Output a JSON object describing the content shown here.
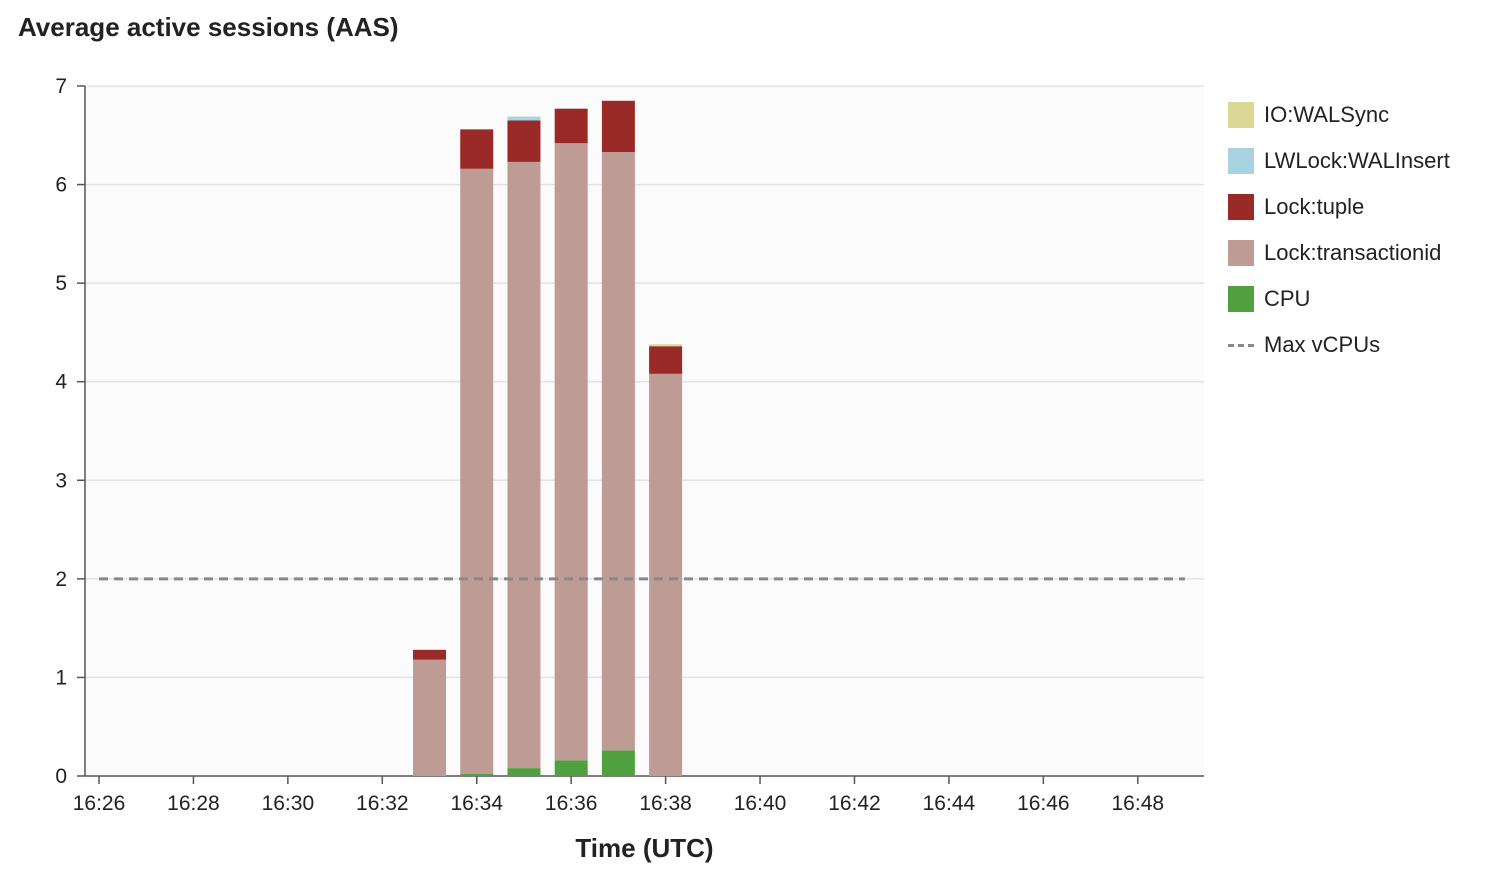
{
  "chart_data": {
    "type": "bar",
    "stacked": true,
    "title": "Average active sessions (AAS)",
    "xlabel": "Time (UTC)",
    "ylabel": "",
    "ylim": [
      0,
      7
    ],
    "yticks": [
      0,
      1,
      2,
      3,
      4,
      5,
      6,
      7
    ],
    "xlim": [
      "16:26",
      "16:49"
    ],
    "xticks": [
      "16:26",
      "16:28",
      "16:30",
      "16:32",
      "16:34",
      "16:36",
      "16:38",
      "16:40",
      "16:42",
      "16:44",
      "16:46",
      "16:48"
    ],
    "grid": "horizontal",
    "legend_position": "right",
    "categories": [
      "16:33",
      "16:34",
      "16:35",
      "16:36",
      "16:37",
      "16:38"
    ],
    "series": [
      {
        "name": "CPU",
        "color": "#50a040",
        "values": [
          0,
          0.02,
          0.08,
          0.16,
          0.26,
          0
        ]
      },
      {
        "name": "Lock:transactionid",
        "color": "#be9c95",
        "values": [
          1.18,
          6.14,
          6.15,
          6.26,
          6.07,
          4.08
        ]
      },
      {
        "name": "Lock:tuple",
        "color": "#992a27",
        "values": [
          0.1,
          0.4,
          0.42,
          0.35,
          0.52,
          0.28
        ]
      },
      {
        "name": "LWLock:WALInsert",
        "color": "#a8d4e2",
        "values": [
          0,
          0,
          0.04,
          0,
          0,
          0
        ]
      },
      {
        "name": "IO:WALSync",
        "color": "#dbd896",
        "values": [
          0,
          0,
          0,
          0,
          0,
          0.02
        ]
      }
    ],
    "reference_line": {
      "name": "Max vCPUs",
      "value": 2,
      "color": "#888888",
      "style": "dashed"
    }
  },
  "legend": [
    {
      "label": "IO:WALSync",
      "color": "#dbd896",
      "kind": "swatch"
    },
    {
      "label": "LWLock:WALInsert",
      "color": "#a8d4e2",
      "kind": "swatch"
    },
    {
      "label": "Lock:tuple",
      "color": "#992a27",
      "kind": "swatch"
    },
    {
      "label": "Lock:transactionid",
      "color": "#be9c95",
      "kind": "swatch"
    },
    {
      "label": "CPU",
      "color": "#50a040",
      "kind": "swatch"
    },
    {
      "label": "Max vCPUs",
      "color": "#888888",
      "kind": "dash"
    }
  ]
}
